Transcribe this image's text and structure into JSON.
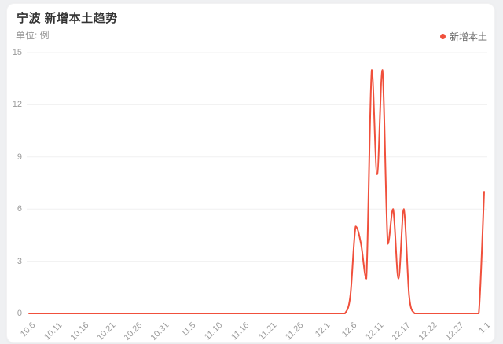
{
  "page": {
    "background_color": "#eff0f2",
    "card_background_color": "#ffffff"
  },
  "header": {
    "title": "宁波 新增本土趋势",
    "subtitle": "单位: 例"
  },
  "legend": {
    "items": [
      {
        "label": "新增本土",
        "color": "#f0503c"
      }
    ]
  },
  "chart_data": {
    "type": "line",
    "smooth": true,
    "title": "宁波 新增本土趋势",
    "unit_label": "单位: 例",
    "line_color": "#f0503c",
    "grid_color": "#f0f0f1",
    "axis_label_color": "#9b9b9b",
    "grid_on": true,
    "legend_position": "top-right",
    "ylim": [
      0,
      15
    ],
    "yticks": [
      0,
      3,
      6,
      9,
      12,
      15
    ],
    "xtick_every": 5,
    "xtick_labels": [
      "10.6",
      "10.11",
      "10.16",
      "10.21",
      "10.26",
      "10.31",
      "11.5",
      "11.10",
      "11.16",
      "11.21",
      "11.26",
      "12.1",
      "12.6",
      "12.11",
      "12.17",
      "12.22",
      "12.27",
      "1.1"
    ],
    "x": [
      "10.6",
      "10.7",
      "10.8",
      "10.9",
      "10.10",
      "10.11",
      "10.12",
      "10.13",
      "10.14",
      "10.15",
      "10.16",
      "10.17",
      "10.18",
      "10.19",
      "10.20",
      "10.21",
      "10.22",
      "10.23",
      "10.24",
      "10.25",
      "10.26",
      "10.27",
      "10.28",
      "10.29",
      "10.30",
      "10.31",
      "11.1",
      "11.2",
      "11.3",
      "11.4",
      "11.5",
      "11.6",
      "11.7",
      "11.8",
      "11.9",
      "11.10",
      "11.11",
      "11.12",
      "11.13",
      "11.14",
      "11.16",
      "11.17",
      "11.18",
      "11.19",
      "11.20",
      "11.21",
      "11.22",
      "11.23",
      "11.24",
      "11.25",
      "11.26",
      "11.27",
      "11.28",
      "11.29",
      "11.30",
      "12.1",
      "12.2",
      "12.3",
      "12.4",
      "12.5",
      "12.6",
      "12.7",
      "12.8",
      "12.9",
      "12.10",
      "12.11",
      "12.12",
      "12.13",
      "12.14",
      "12.15",
      "12.17",
      "12.18",
      "12.19",
      "12.20",
      "12.21",
      "12.22",
      "12.23",
      "12.24",
      "12.25",
      "12.26",
      "12.27",
      "12.28",
      "12.29",
      "12.30",
      "12.31",
      "1.1"
    ],
    "series": [
      {
        "name": "新增本土",
        "values": [
          0,
          0,
          0,
          0,
          0,
          0,
          0,
          0,
          0,
          0,
          0,
          0,
          0,
          0,
          0,
          0,
          0,
          0,
          0,
          0,
          0,
          0,
          0,
          0,
          0,
          0,
          0,
          0,
          0,
          0,
          0,
          0,
          0,
          0,
          0,
          0,
          0,
          0,
          0,
          0,
          0,
          0,
          0,
          0,
          0,
          0,
          0,
          0,
          0,
          0,
          0,
          0,
          0,
          0,
          0,
          0,
          0,
          0,
          0,
          0,
          1,
          5,
          4,
          2,
          14,
          8,
          14,
          4,
          6,
          2,
          6,
          1,
          0,
          0,
          0,
          0,
          0,
          0,
          0,
          0,
          0,
          0,
          0,
          0,
          0,
          7
        ]
      }
    ]
  }
}
